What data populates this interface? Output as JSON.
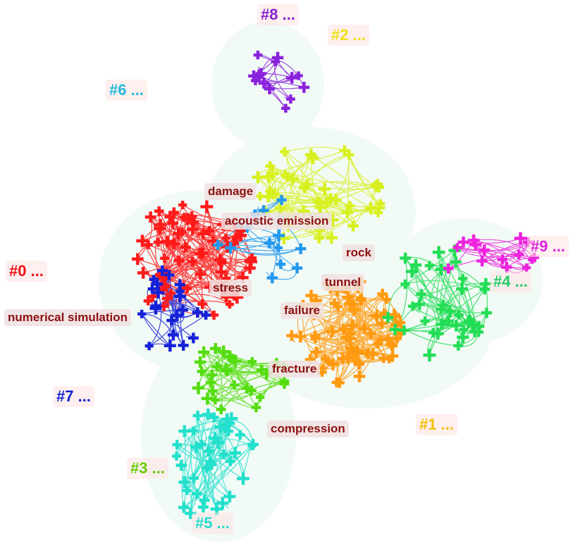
{
  "clusters": [
    {
      "label": "#0 ..."
    },
    {
      "label": "#1 ..."
    },
    {
      "label": "#2 ..."
    },
    {
      "label": "#3 ..."
    },
    {
      "label": "#4 ..."
    },
    {
      "label": "#5 ..."
    },
    {
      "label": "#6 ..."
    },
    {
      "label": "#7 ..."
    },
    {
      "label": "#8 ..."
    },
    {
      "label": "#9 ..."
    }
  ],
  "keywords": [
    {
      "label": "damage"
    },
    {
      "label": "acoustic emission"
    },
    {
      "label": "rock"
    },
    {
      "label": "tunnel"
    },
    {
      "label": "stress"
    },
    {
      "label": "numerical simulation"
    },
    {
      "label": "failure"
    },
    {
      "label": "fracture"
    },
    {
      "label": "compression"
    }
  ]
}
